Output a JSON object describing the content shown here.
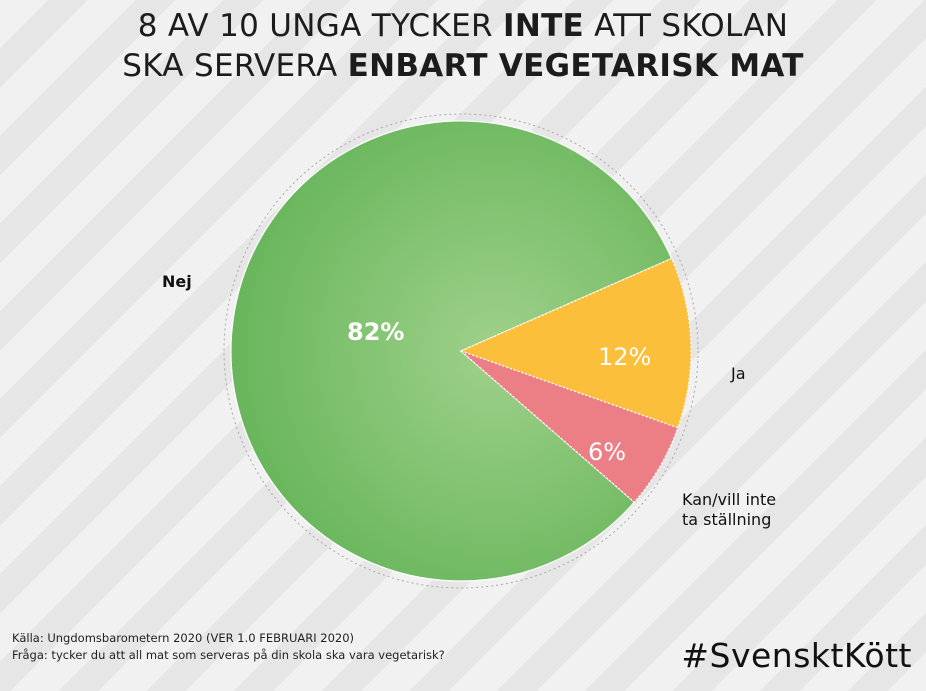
{
  "title": {
    "line1_a": "8 AV 10 UNGA TYCKER ",
    "line1_b": "INTE",
    "line1_c": " ATT SKOLAN",
    "line2_a": "SKA SERVERA ",
    "line2_b": "ENBART VEGETARISK MAT"
  },
  "chart_data": {
    "type": "pie",
    "categories": [
      "Nej",
      "Ja",
      "Kan/vill inte ta ställning"
    ],
    "values": [
      82,
      12,
      6
    ],
    "value_labels": [
      "82%",
      "12%",
      "6%"
    ],
    "colors": [
      "#6dbb5e",
      "#fbbf3c",
      "#ec7f86"
    ],
    "legend": "none"
  },
  "labels": {
    "nej": "Nej",
    "ja": "Ja",
    "kan_line1": "Kan/vill inte",
    "kan_line2": "ta ställning"
  },
  "footer": {
    "source": "Källa: Ungdomsbarometern 2020 (VER 1.0 FEBRUARI 2020)",
    "question": "Fråga: tycker du att all mat som serveras på din skola ska vara vegetarisk?",
    "hashtag": "#SvensktKött"
  }
}
